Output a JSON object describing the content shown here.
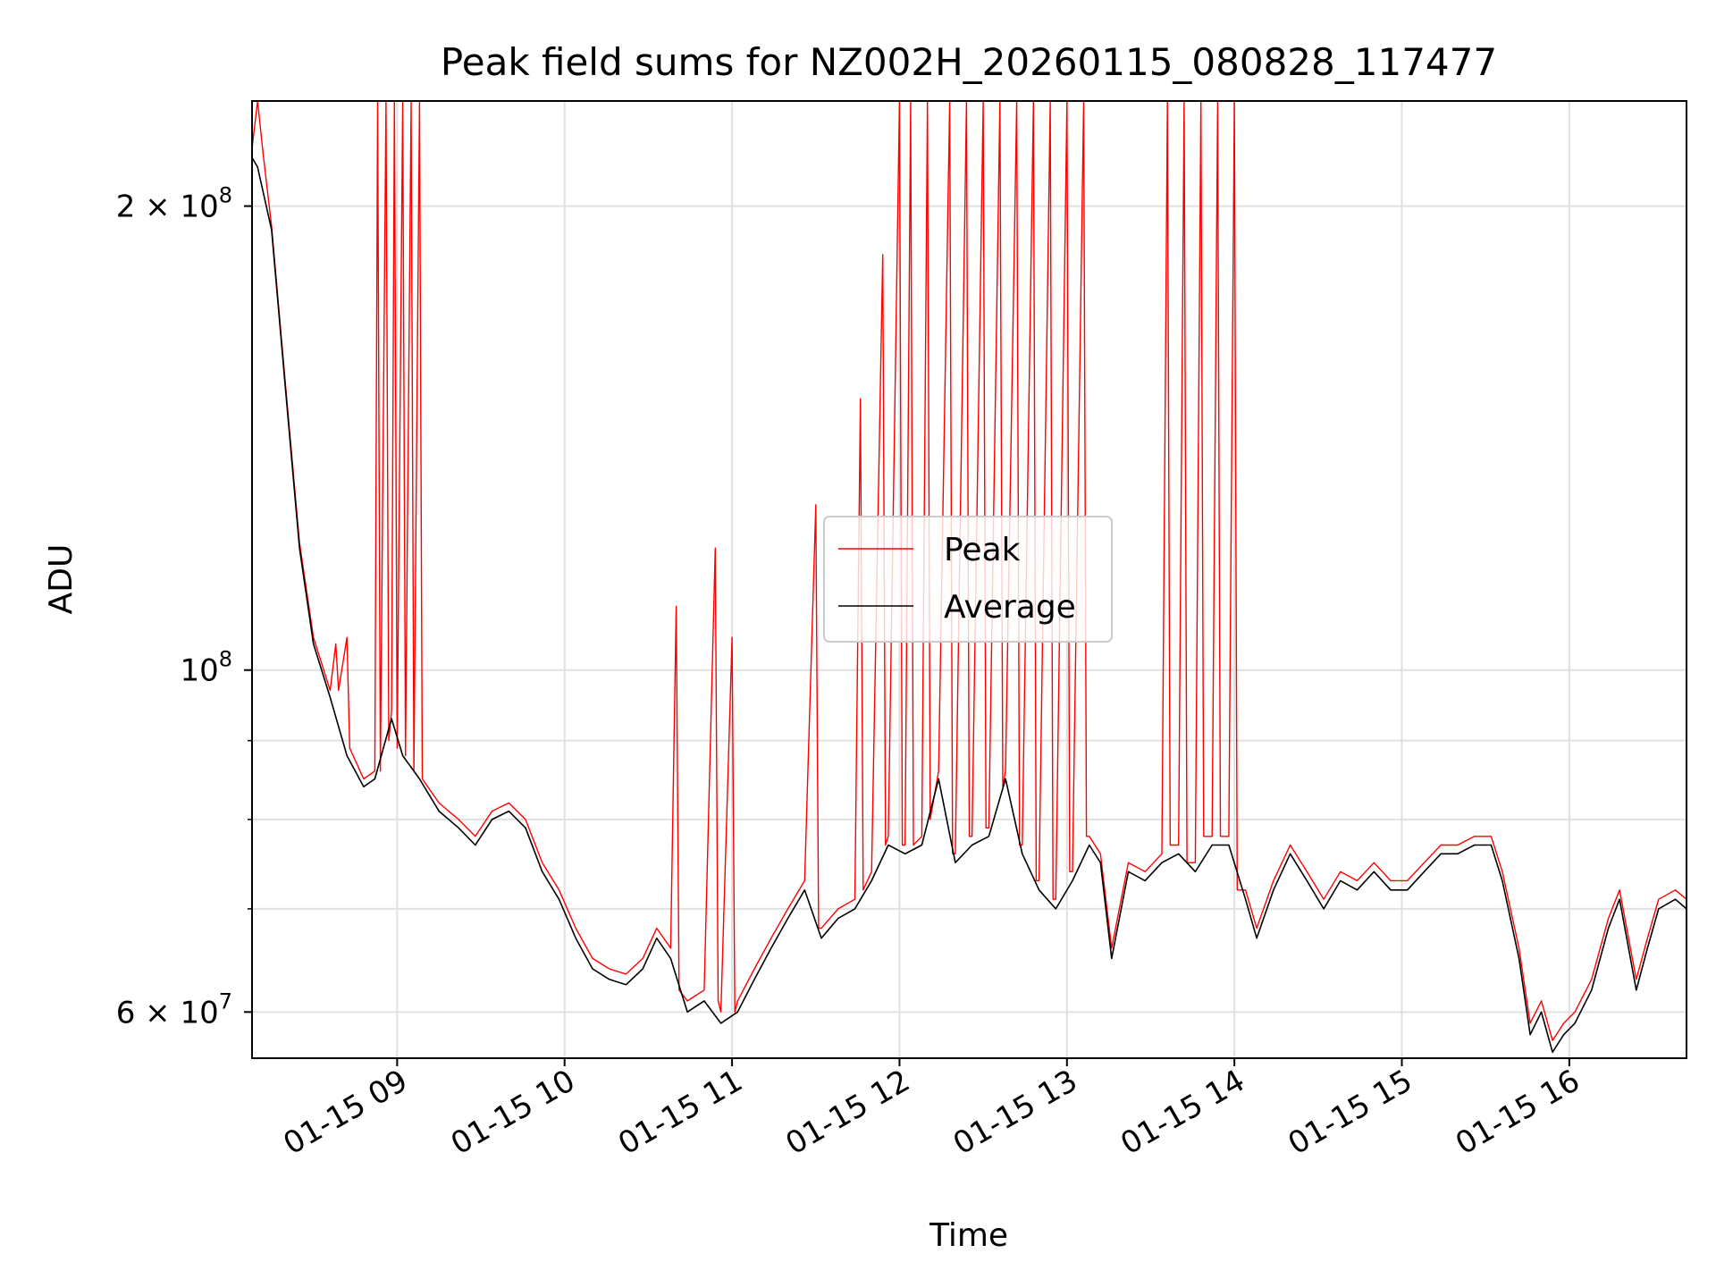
{
  "chart_data": {
    "type": "line",
    "title": "Peak field sums for NZ002H_20260115_080828_117477",
    "xlabel": "Time",
    "ylabel": "ADU",
    "yscale": "log",
    "grid": true,
    "legend_placement": "center",
    "xlim": [
      "2026-01-15 08:08",
      "2026-01-15 16:42"
    ],
    "ylim": [
      56000000,
      234000000
    ],
    "x_ticks": [
      {
        "value": "2026-01-15 09:00",
        "label": "01-15 09"
      },
      {
        "value": "2026-01-15 10:00",
        "label": "01-15 10"
      },
      {
        "value": "2026-01-15 11:00",
        "label": "01-15 11"
      },
      {
        "value": "2026-01-15 12:00",
        "label": "01-15 12"
      },
      {
        "value": "2026-01-15 13:00",
        "label": "01-15 13"
      },
      {
        "value": "2026-01-15 14:00",
        "label": "01-15 14"
      },
      {
        "value": "2026-01-15 15:00",
        "label": "01-15 15"
      },
      {
        "value": "2026-01-15 16:00",
        "label": "01-15 16"
      }
    ],
    "y_ticks": [
      {
        "value": 60000000,
        "label": "6 × 10",
        "exp": "7"
      },
      {
        "value": 100000000,
        "label": "10",
        "exp": "8"
      },
      {
        "value": 200000000,
        "label": "2 × 10",
        "exp": "8"
      }
    ],
    "y_minor_ticks": [
      70000000,
      80000000,
      90000000
    ],
    "series": [
      {
        "name": "Average",
        "color": "#000000",
        "points": [
          [
            "08:08",
            215000000
          ],
          [
            "08:10",
            212000000
          ],
          [
            "08:15",
            193000000
          ],
          [
            "08:20",
            152000000
          ],
          [
            "08:25",
            120000000
          ],
          [
            "08:30",
            104000000
          ],
          [
            "08:36",
            96000000
          ],
          [
            "08:42",
            88000000
          ],
          [
            "08:48",
            84000000
          ],
          [
            "08:52",
            85000000
          ],
          [
            "08:58",
            93000000
          ],
          [
            "09:02",
            88000000
          ],
          [
            "09:08",
            85000000
          ],
          [
            "09:15",
            81000000
          ],
          [
            "09:22",
            79000000
          ],
          [
            "09:28",
            77000000
          ],
          [
            "09:34",
            80000000
          ],
          [
            "09:40",
            81000000
          ],
          [
            "09:46",
            79000000
          ],
          [
            "09:52",
            74000000
          ],
          [
            "09:58",
            71000000
          ],
          [
            "10:04",
            67000000
          ],
          [
            "10:10",
            64000000
          ],
          [
            "10:16",
            63000000
          ],
          [
            "10:22",
            62500000
          ],
          [
            "10:28",
            64000000
          ],
          [
            "10:33",
            67000000
          ],
          [
            "10:38",
            65000000
          ],
          [
            "10:44",
            60000000
          ],
          [
            "10:50",
            61000000
          ],
          [
            "10:56",
            59000000
          ],
          [
            "11:02",
            60000000
          ],
          [
            "11:08",
            63000000
          ],
          [
            "11:14",
            66000000
          ],
          [
            "11:20",
            69000000
          ],
          [
            "11:26",
            72000000
          ],
          [
            "11:32",
            67000000
          ],
          [
            "11:38",
            69000000
          ],
          [
            "11:44",
            70000000
          ],
          [
            "11:50",
            73000000
          ],
          [
            "11:56",
            77000000
          ],
          [
            "12:02",
            76000000
          ],
          [
            "12:08",
            77000000
          ],
          [
            "12:14",
            85000000
          ],
          [
            "12:20",
            75000000
          ],
          [
            "12:26",
            77000000
          ],
          [
            "12:32",
            78000000
          ],
          [
            "12:38",
            85000000
          ],
          [
            "12:44",
            76000000
          ],
          [
            "12:50",
            72000000
          ],
          [
            "12:56",
            70000000
          ],
          [
            "13:02",
            73000000
          ],
          [
            "13:08",
            77000000
          ],
          [
            "13:12",
            75000000
          ],
          [
            "13:16",
            65000000
          ],
          [
            "13:22",
            74000000
          ],
          [
            "13:28",
            73000000
          ],
          [
            "13:34",
            75000000
          ],
          [
            "13:40",
            76000000
          ],
          [
            "13:46",
            74000000
          ],
          [
            "13:52",
            77000000
          ],
          [
            "13:58",
            77000000
          ],
          [
            "14:04",
            71000000
          ],
          [
            "14:08",
            67000000
          ],
          [
            "14:14",
            72000000
          ],
          [
            "14:20",
            76000000
          ],
          [
            "14:26",
            73000000
          ],
          [
            "14:32",
            70000000
          ],
          [
            "14:38",
            73000000
          ],
          [
            "14:44",
            72000000
          ],
          [
            "14:50",
            74000000
          ],
          [
            "14:56",
            72000000
          ],
          [
            "15:02",
            72000000
          ],
          [
            "15:08",
            74000000
          ],
          [
            "15:14",
            76000000
          ],
          [
            "15:20",
            76000000
          ],
          [
            "15:26",
            77000000
          ],
          [
            "15:32",
            77000000
          ],
          [
            "15:36",
            73000000
          ],
          [
            "15:42",
            65000000
          ],
          [
            "15:46",
            58000000
          ],
          [
            "15:50",
            60000000
          ],
          [
            "15:54",
            56500000
          ],
          [
            "15:58",
            58000000
          ],
          [
            "16:02",
            59000000
          ],
          [
            "16:08",
            62000000
          ],
          [
            "16:14",
            68000000
          ],
          [
            "16:18",
            71000000
          ],
          [
            "16:24",
            62000000
          ],
          [
            "16:28",
            66000000
          ],
          [
            "16:32",
            70000000
          ],
          [
            "16:38",
            71000000
          ],
          [
            "16:42",
            70000000
          ]
        ]
      },
      {
        "name": "Peak",
        "color": "#ff0000",
        "points": [
          [
            "08:08",
            218000000
          ],
          [
            "08:10",
            234000000
          ],
          [
            "08:12",
            216000000
          ],
          [
            "08:15",
            194000000
          ],
          [
            "08:20",
            153000000
          ],
          [
            "08:25",
            121000000
          ],
          [
            "08:30",
            105000000
          ],
          [
            "08:36",
            97000000
          ],
          [
            "08:38",
            104000000
          ],
          [
            "08:39",
            97000000
          ],
          [
            "08:42",
            105000000
          ],
          [
            "08:43",
            89000000
          ],
          [
            "08:48",
            85000000
          ],
          [
            "08:52",
            86000000
          ],
          [
            "08:53",
            234000000
          ],
          [
            "08:54",
            86000000
          ],
          [
            "08:56",
            234000000
          ],
          [
            "08:57",
            90000000
          ],
          [
            "08:58",
            94000000
          ],
          [
            "08:59",
            234000000
          ],
          [
            "09:00",
            89000000
          ],
          [
            "09:02",
            234000000
          ],
          [
            "09:03",
            88000000
          ],
          [
            "09:05",
            234000000
          ],
          [
            "09:06",
            86000000
          ],
          [
            "09:08",
            234000000
          ],
          [
            "09:09",
            85000000
          ],
          [
            "09:15",
            82000000
          ],
          [
            "09:22",
            80000000
          ],
          [
            "09:28",
            78000000
          ],
          [
            "09:34",
            81000000
          ],
          [
            "09:40",
            82000000
          ],
          [
            "09:46",
            80000000
          ],
          [
            "09:52",
            75000000
          ],
          [
            "09:58",
            72000000
          ],
          [
            "10:04",
            68000000
          ],
          [
            "10:10",
            65000000
          ],
          [
            "10:16",
            64000000
          ],
          [
            "10:22",
            63500000
          ],
          [
            "10:28",
            65000000
          ],
          [
            "10:33",
            68000000
          ],
          [
            "10:38",
            66000000
          ],
          [
            "10:40",
            110000000
          ],
          [
            "10:41",
            62000000
          ],
          [
            "10:44",
            61000000
          ],
          [
            "10:50",
            62000000
          ],
          [
            "10:54",
            120000000
          ],
          [
            "10:55",
            61000000
          ],
          [
            "10:56",
            60000000
          ],
          [
            "11:00",
            105000000
          ],
          [
            "11:01",
            60000000
          ],
          [
            "11:02",
            61000000
          ],
          [
            "11:08",
            64000000
          ],
          [
            "11:14",
            67000000
          ],
          [
            "11:20",
            70000000
          ],
          [
            "11:26",
            73000000
          ],
          [
            "11:30",
            128000000
          ],
          [
            "11:31",
            68000000
          ],
          [
            "11:32",
            68000000
          ],
          [
            "11:38",
            70000000
          ],
          [
            "11:44",
            71000000
          ],
          [
            "11:46",
            150000000
          ],
          [
            "11:47",
            72000000
          ],
          [
            "11:50",
            74000000
          ],
          [
            "11:54",
            186000000
          ],
          [
            "11:55",
            77000000
          ],
          [
            "11:56",
            78000000
          ],
          [
            "12:00",
            234000000
          ],
          [
            "12:01",
            77000000
          ],
          [
            "12:02",
            77000000
          ],
          [
            "12:04",
            234000000
          ],
          [
            "12:05",
            77000000
          ],
          [
            "12:08",
            78000000
          ],
          [
            "12:10",
            234000000
          ],
          [
            "12:11",
            80000000
          ],
          [
            "12:14",
            86000000
          ],
          [
            "12:18",
            234000000
          ],
          [
            "12:19",
            76000000
          ],
          [
            "12:20",
            76000000
          ],
          [
            "12:24",
            234000000
          ],
          [
            "12:25",
            78000000
          ],
          [
            "12:26",
            78000000
          ],
          [
            "12:30",
            234000000
          ],
          [
            "12:31",
            79000000
          ],
          [
            "12:32",
            79000000
          ],
          [
            "12:36",
            234000000
          ],
          [
            "12:37",
            84000000
          ],
          [
            "12:38",
            86000000
          ],
          [
            "12:42",
            234000000
          ],
          [
            "12:43",
            77000000
          ],
          [
            "12:44",
            77000000
          ],
          [
            "12:48",
            234000000
          ],
          [
            "12:49",
            73000000
          ],
          [
            "12:50",
            73000000
          ],
          [
            "12:54",
            234000000
          ],
          [
            "12:55",
            71000000
          ],
          [
            "12:56",
            71000000
          ],
          [
            "13:00",
            234000000
          ],
          [
            "13:01",
            74000000
          ],
          [
            "13:02",
            74000000
          ],
          [
            "13:06",
            234000000
          ],
          [
            "13:07",
            78000000
          ],
          [
            "13:08",
            78000000
          ],
          [
            "13:12",
            76000000
          ],
          [
            "13:16",
            66000000
          ],
          [
            "13:22",
            75000000
          ],
          [
            "13:28",
            74000000
          ],
          [
            "13:34",
            76000000
          ],
          [
            "13:36",
            234000000
          ],
          [
            "13:37",
            77000000
          ],
          [
            "13:40",
            77000000
          ],
          [
            "13:42",
            234000000
          ],
          [
            "13:43",
            75000000
          ],
          [
            "13:46",
            75000000
          ],
          [
            "13:48",
            234000000
          ],
          [
            "13:49",
            78000000
          ],
          [
            "13:52",
            78000000
          ],
          [
            "13:54",
            234000000
          ],
          [
            "13:55",
            78000000
          ],
          [
            "13:58",
            78000000
          ],
          [
            "14:00",
            234000000
          ],
          [
            "14:01",
            72000000
          ],
          [
            "14:04",
            72000000
          ],
          [
            "14:08",
            68000000
          ],
          [
            "14:14",
            73000000
          ],
          [
            "14:20",
            77000000
          ],
          [
            "14:26",
            74000000
          ],
          [
            "14:32",
            71000000
          ],
          [
            "14:38",
            74000000
          ],
          [
            "14:44",
            73000000
          ],
          [
            "14:50",
            75000000
          ],
          [
            "14:56",
            73000000
          ],
          [
            "15:02",
            73000000
          ],
          [
            "15:08",
            75000000
          ],
          [
            "15:14",
            77000000
          ],
          [
            "15:20",
            77000000
          ],
          [
            "15:26",
            78000000
          ],
          [
            "15:32",
            78000000
          ],
          [
            "15:36",
            74000000
          ],
          [
            "15:42",
            66000000
          ],
          [
            "15:46",
            59000000
          ],
          [
            "15:50",
            61000000
          ],
          [
            "15:54",
            57500000
          ],
          [
            "15:58",
            59000000
          ],
          [
            "16:02",
            60000000
          ],
          [
            "16:08",
            63000000
          ],
          [
            "16:14",
            69000000
          ],
          [
            "16:18",
            72000000
          ],
          [
            "16:24",
            63000000
          ],
          [
            "16:28",
            67000000
          ],
          [
            "16:32",
            71000000
          ],
          [
            "16:38",
            72000000
          ],
          [
            "16:42",
            71000000
          ]
        ]
      }
    ]
  }
}
